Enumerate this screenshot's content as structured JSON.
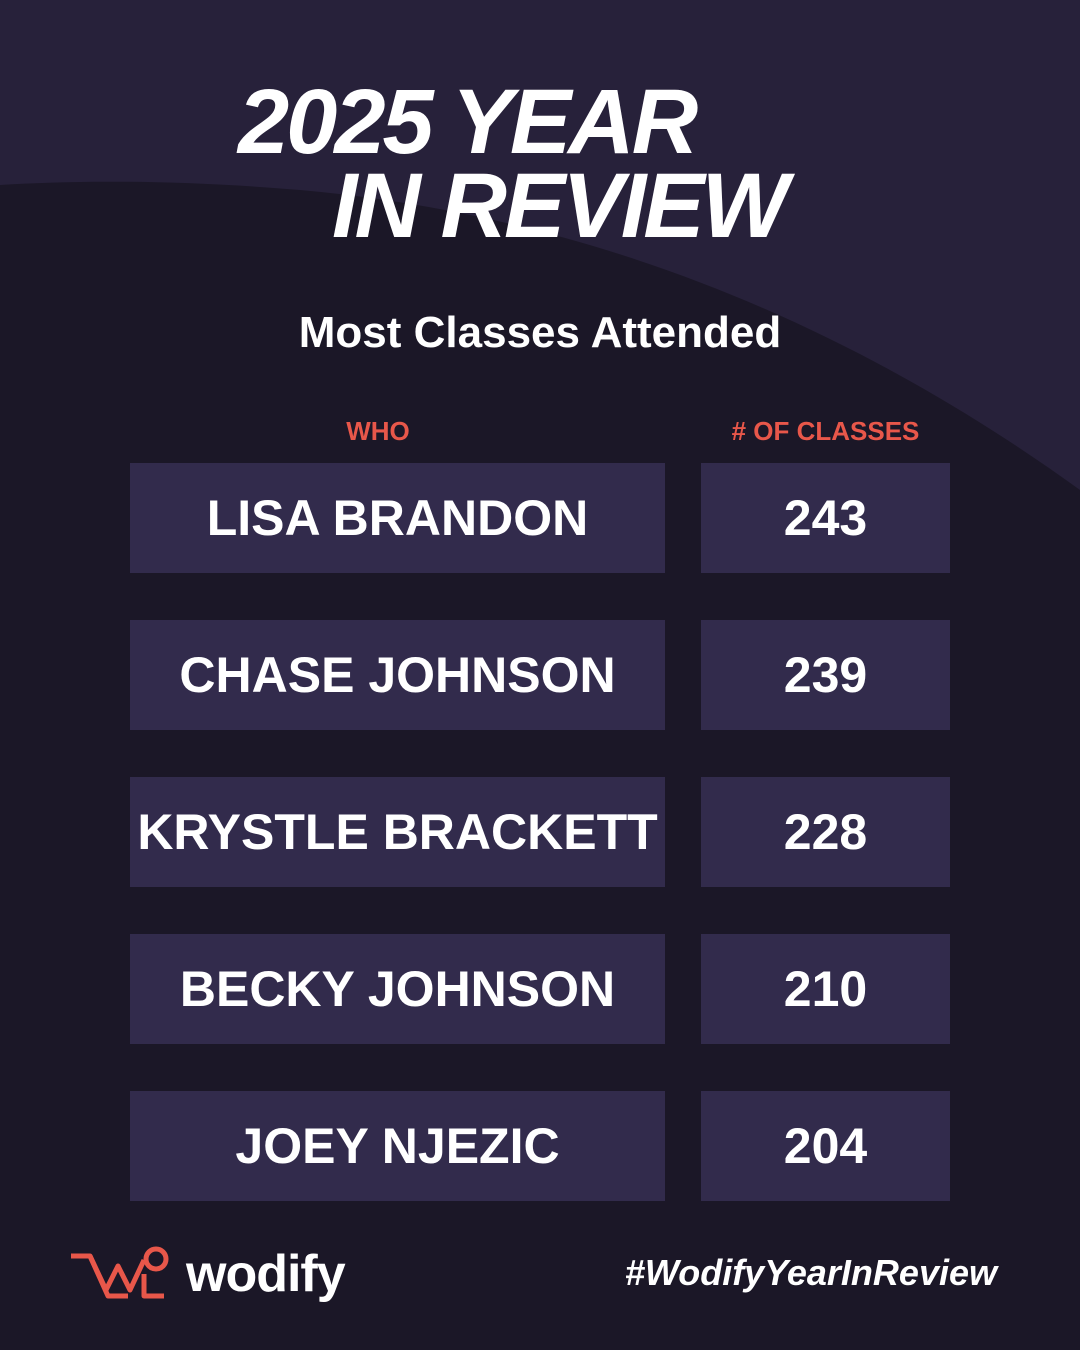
{
  "header": {
    "title": [
      "2025 YEAR",
      "IN REVIEW"
    ],
    "subtitle": "Most Classes Attended"
  },
  "table": {
    "columns": [
      "WHO",
      "# OF CLASSES"
    ],
    "rows": [
      [
        "LISA BRANDON",
        243
      ],
      [
        "CHASE JOHNSON",
        239
      ],
      [
        "KRYSTLE BRACKETT",
        228
      ],
      [
        "BECKY JOHNSON",
        210
      ],
      [
        "JOEY NJEZIC",
        204
      ]
    ]
  },
  "footer": {
    "brand": "wodify",
    "hashtag": "#WodifyYearInReview"
  }
}
